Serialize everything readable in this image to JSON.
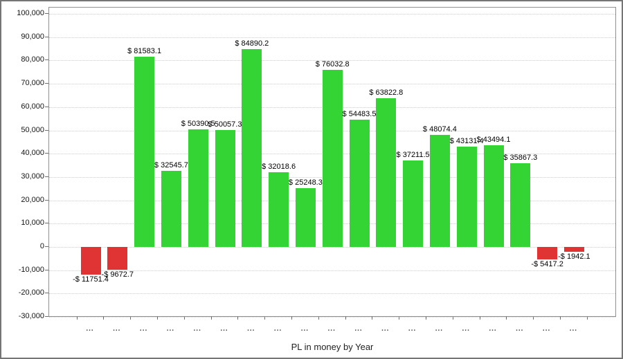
{
  "window": {
    "background": "#ffffff",
    "border_color": "#757575"
  },
  "chart_data": {
    "type": "bar",
    "title": "PL in money by Year",
    "xlabel": "PL in money by Year",
    "ylabel": "",
    "ylim": [
      -30000,
      100000
    ],
    "ytick_step": 10000,
    "ytick_labels": [
      "100,000",
      "90,000",
      "80,000",
      "70,000",
      "60,000",
      "50,000",
      "40,000",
      "30,000",
      "20,000",
      "10,000",
      "0",
      "-10,000",
      "-20,000",
      "-30,000"
    ],
    "grid": "horizontal-dotted",
    "legend": "none",
    "categories": [
      "...",
      "...",
      "...",
      "...",
      "...",
      "...",
      "...",
      "...",
      "...",
      "...",
      "...",
      "...",
      "...",
      "...",
      "...",
      "...",
      "...",
      "...",
      "..."
    ],
    "values": [
      -11751.4,
      -9672.7,
      81583.1,
      32545.7,
      50390.5,
      50057.3,
      84890.2,
      32018.6,
      25248.3,
      76032.8,
      54483.5,
      63822.8,
      37211.5,
      48074.4,
      43131.4,
      43494.1,
      35867.3,
      -5417.2,
      -1942.1
    ],
    "point_labels": [
      "-$ 11751.4",
      "-$ 9672.7",
      "$ 81583.1",
      "$ 32545.7",
      "$ 50390.5",
      "$ 50057.3",
      "$ 84890.2",
      "$ 32018.6",
      "$ 25248.3",
      "$ 76032.8",
      "$ 54483.5",
      "$ 63822.8",
      "$ 37211.5",
      "$ 48074.4",
      "$ 43131.4",
      "$ 43494.1",
      "$ 35867.3",
      "-$ 5417.2",
      "-$ 1942.1"
    ],
    "positive_color": "#35d435",
    "negative_color": "#e03333",
    "value_label_color": "#000000",
    "gridline_color": "#cccccc"
  }
}
